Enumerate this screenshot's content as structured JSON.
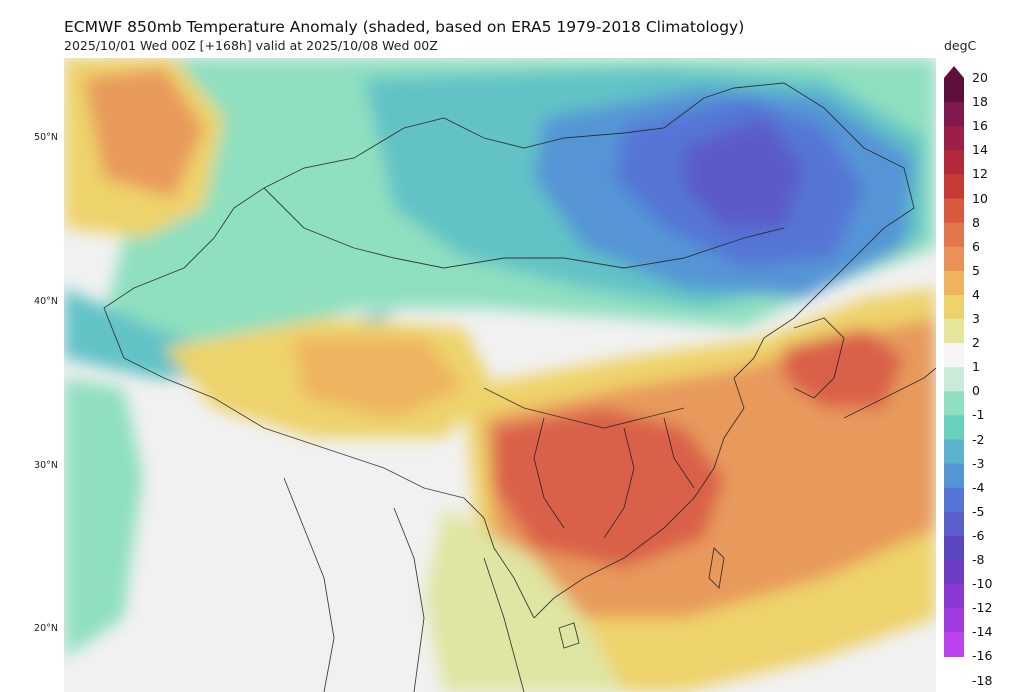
{
  "header": {
    "title": "ECMWF 850mb Temperature Anomaly (shaded, based on ERA5 1979-2018 Climatology)",
    "subtitle": "2025/10/01 Wed 00Z [+168h] valid at 2025/10/08 Wed 00Z"
  },
  "map": {
    "lat_labels": [
      "50°N",
      "40°N",
      "30°N",
      "20°N"
    ]
  },
  "colorbar": {
    "unit": "degC",
    "ticks": [
      "20",
      "18",
      "16",
      "14",
      "12",
      "10",
      "8",
      "6",
      "5",
      "4",
      "3",
      "2",
      "1",
      "0",
      "-1",
      "-2",
      "-3",
      "-4",
      "-5",
      "-6",
      "-8",
      "-10",
      "-12",
      "-14",
      "-16",
      "-18"
    ],
    "colors": [
      "#5e0f3b",
      "#7e1a4d",
      "#9c1f47",
      "#b32a3c",
      "#c83a36",
      "#da5a3f",
      "#e2764d",
      "#e89158",
      "#eeb45e",
      "#eed36b",
      "#e6e59b",
      "#f6f6f6",
      "#c9ecd9",
      "#8fe0c0",
      "#69cfbf",
      "#5ab5cc",
      "#5595d5",
      "#5576d6",
      "#5b5fcc",
      "#5b48c0",
      "#6d3bc4",
      "#8a37d4",
      "#a33ce0",
      "#bc44ee"
    ]
  },
  "colors": {
    "strong_warm": "#d9604a",
    "warm": "#e89a5c",
    "mild_warm": "#eed36b",
    "light_warm": "#dfe5a2",
    "neutral": "#f1f1f1",
    "cool": "#8fe0c0",
    "cooler": "#62c2c6",
    "cold": "#5595d5",
    "very_cold": "#5576d6",
    "coldest": "#5c5ac9"
  }
}
